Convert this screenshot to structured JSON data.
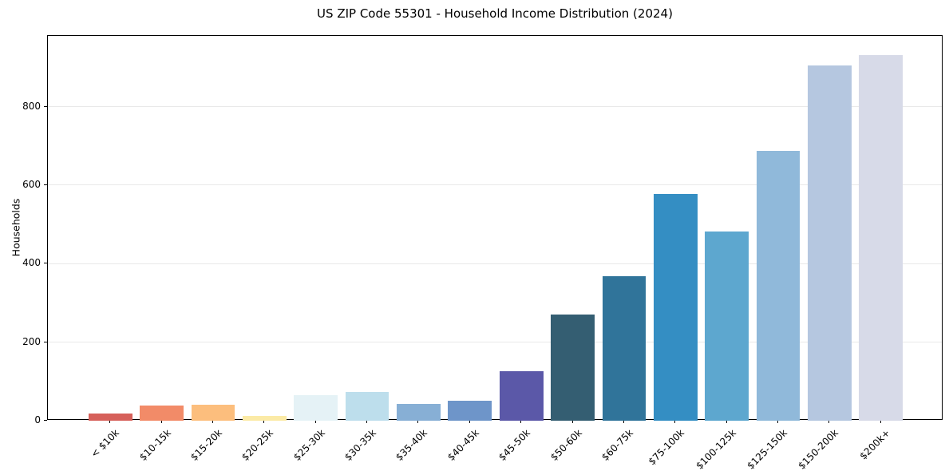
{
  "chart_data": {
    "type": "bar",
    "title": "US ZIP Code 55301 - Household Income Distribution (2024)",
    "xlabel": "",
    "ylabel": "Households",
    "categories": [
      "< $10k",
      "$10-15k",
      "$15-20k",
      "$20-25k",
      "$25-30k",
      "$30-35k",
      "$35-40k",
      "$40-45k",
      "$45-50k",
      "$50-60k",
      "$60-75k",
      "$75-100k",
      "$100-125k",
      "$125-150k",
      "$150-200k",
      "$200k+"
    ],
    "values": [
      18,
      38,
      41,
      13,
      65,
      74,
      42,
      51,
      127,
      271,
      367,
      578,
      482,
      687,
      905,
      931
    ],
    "bar_colors": [
      "#d6605a",
      "#f28b68",
      "#fcbe7d",
      "#fbeaa6",
      "#e5f2f6",
      "#bddeec",
      "#87afd5",
      "#6e95c9",
      "#5b58a8",
      "#345e72",
      "#30749a",
      "#348ec3",
      "#5da7cf",
      "#90b9da",
      "#b5c7e0",
      "#d7dae8"
    ],
    "ylim": [
      0,
      980
    ],
    "yticks": [
      0,
      200,
      400,
      600,
      800
    ],
    "grid": "horizontal-behind-bars",
    "legend": "none",
    "colors": {
      "background": "#ffffff",
      "spine": "#000000",
      "gridline": "#e9e9e9",
      "text": "#000000"
    }
  }
}
